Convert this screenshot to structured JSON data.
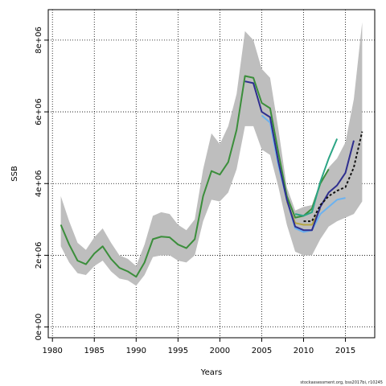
{
  "chart_data": {
    "type": "line",
    "title": "",
    "xlabel": "Years",
    "ylabel": "SSB",
    "xlim": [
      1979.5,
      2018.5
    ],
    "ylim": [
      -300000,
      8850000
    ],
    "x_ticks": [
      1980,
      1985,
      1990,
      1995,
      2000,
      2005,
      2010,
      2015
    ],
    "x_tick_labels": [
      "1980",
      "1985",
      "1990",
      "1995",
      "2000",
      "2005",
      "2010",
      "2015"
    ],
    "y_ticks": [
      0,
      2000000,
      4000000,
      6000000,
      8000000
    ],
    "y_tick_labels": [
      "0e+00",
      "2e+06",
      "4e+06",
      "6e+06",
      "8e+06"
    ],
    "grid": "dotted",
    "credit": "stockassessment.org, bss2017bi, r10245",
    "band": {
      "color": "#bebebe",
      "x": [
        1981,
        1982,
        1983,
        1984,
        1985,
        1986,
        1987,
        1988,
        1989,
        1990,
        1991,
        1992,
        1993,
        1994,
        1995,
        1996,
        1997,
        1998,
        1999,
        2000,
        2001,
        2002,
        2003,
        2004,
        2005,
        2006,
        2007,
        2008,
        2009,
        2010,
        2011,
        2012,
        2013,
        2014,
        2015,
        2016,
        2017
      ],
      "lower": [
        2250000,
        1800000,
        1500000,
        1450000,
        1700000,
        1850000,
        1550000,
        1350000,
        1300000,
        1150000,
        1450000,
        1950000,
        2000000,
        2000000,
        1850000,
        1800000,
        2000000,
        2950000,
        3550000,
        3500000,
        3750000,
        4400000,
        5600000,
        5600000,
        4950000,
        4800000,
        3900000,
        2850000,
        2100000,
        2000000,
        2000000,
        2450000,
        2800000,
        2950000,
        3050000,
        3150000,
        3500000
      ],
      "upper": [
        3650000,
        2950000,
        2350000,
        2150000,
        2500000,
        2750000,
        2350000,
        2000000,
        1900000,
        1700000,
        2300000,
        3100000,
        3200000,
        3150000,
        2850000,
        2700000,
        3000000,
        4400000,
        5400000,
        5100000,
        5600000,
        6500000,
        8250000,
        8000000,
        7200000,
        6950000,
        5500000,
        3900000,
        3250000,
        3350000,
        3400000,
        4050000,
        4450000,
        4700000,
        5150000,
        6350000,
        8500000
      ]
    },
    "series": [
      {
        "color": "#3b8e3b",
        "dashed": false,
        "x": [
          1981,
          1982,
          1983,
          1984,
          1985,
          1986,
          1987,
          1988,
          1989,
          1990,
          1991,
          1992,
          1993,
          1994,
          1995,
          1996,
          1997,
          1998,
          1999,
          2000,
          2001,
          2002,
          2003,
          2004,
          2005,
          2006,
          2007,
          2008,
          2009,
          2010,
          2011,
          2012,
          2013
        ],
        "values": [
          2850000,
          2300000,
          1850000,
          1750000,
          2050000,
          2250000,
          1900000,
          1650000,
          1550000,
          1400000,
          1800000,
          2450000,
          2520000,
          2500000,
          2300000,
          2200000,
          2450000,
          3650000,
          4350000,
          4250000,
          4600000,
          5500000,
          7000000,
          6950000,
          6250000,
          6100000,
          4850000,
          3650000,
          3050000,
          3100000,
          3300000,
          4000000,
          4400000
        ]
      },
      {
        "color": "#b5a642",
        "dashed": false,
        "x": [
          2008,
          2009,
          2010,
          2011,
          2012
        ],
        "values": [
          3500000,
          2900000,
          2850000,
          2850000,
          3300000
        ]
      },
      {
        "color": "#6bb2f0",
        "dashed": false,
        "x": [
          2005,
          2006,
          2007,
          2008,
          2009,
          2010,
          2011,
          2012,
          2013,
          2014,
          2015
        ],
        "values": [
          5900000,
          5700000,
          4500000,
          3550000,
          2750000,
          2650000,
          2700000,
          3150000,
          3350000,
          3550000,
          3600000
        ]
      },
      {
        "color": "#2e2e8f",
        "dashed": false,
        "x": [
          2003,
          2004,
          2005,
          2006,
          2007,
          2008,
          2009,
          2010,
          2011,
          2012,
          2013,
          2014,
          2015,
          2016
        ],
        "values": [
          6850000,
          6800000,
          6000000,
          5850000,
          4600000,
          3550000,
          2800000,
          2700000,
          2700000,
          3350000,
          3750000,
          3950000,
          4300000,
          5200000
        ]
      },
      {
        "color": "#2ca585",
        "dashed": false,
        "x": [
          2009,
          2010,
          2011,
          2012,
          2013,
          2014
        ],
        "values": [
          3150000,
          3100000,
          3200000,
          4050000,
          4700000,
          5250000
        ]
      },
      {
        "color": "#111111",
        "dashed": true,
        "x": [
          2010,
          2011,
          2012,
          2013,
          2014,
          2015,
          2016,
          2017
        ],
        "values": [
          2950000,
          2950000,
          3400000,
          3650000,
          3800000,
          3900000,
          4450000,
          5450000
        ]
      }
    ]
  }
}
